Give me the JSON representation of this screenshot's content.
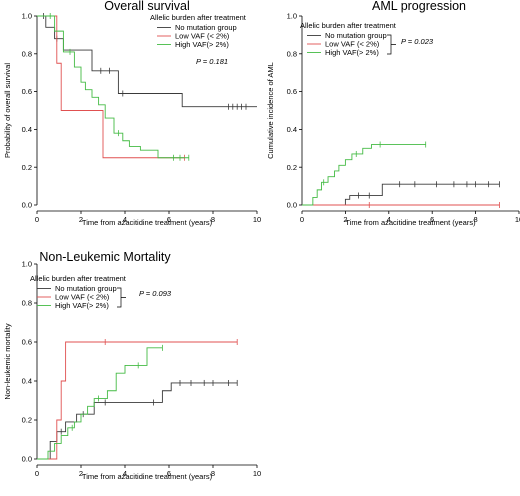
{
  "chart_data": [
    {
      "type": "line",
      "step": true,
      "title": "Overall survival",
      "xlabel": "Time from azacitidine treatment (years)",
      "ylabel": "Probability of overall survival",
      "xlim": [
        0,
        10
      ],
      "ylim": [
        0,
        1.0
      ],
      "xticks": [
        "0",
        "2",
        "4",
        "6",
        "8",
        "10"
      ],
      "yticks": [
        "0.0",
        "0.2",
        "0.4",
        "0.6",
        "0.8",
        "1.0"
      ],
      "legend_title": "Allelic burden after treatment",
      "annotation": "P = 0.181",
      "series": [
        {
          "name": "No mutation group",
          "color": "#3a3a3a",
          "x": [
            0,
            0.4,
            0.8,
            1.2,
            2.5,
            3.7,
            6.6,
            10.0
          ],
          "y": [
            1.0,
            0.94,
            0.88,
            0.82,
            0.71,
            0.59,
            0.52,
            0.52
          ],
          "censor": [
            [
              0.3,
              1.0
            ],
            [
              0.9,
              0.88
            ],
            [
              2.9,
              0.71
            ],
            [
              3.3,
              0.71
            ],
            [
              3.9,
              0.59
            ],
            [
              8.7,
              0.52
            ],
            [
              8.9,
              0.52
            ],
            [
              9.1,
              0.52
            ],
            [
              9.3,
              0.52
            ],
            [
              9.5,
              0.52
            ]
          ]
        },
        {
          "name": "Low VAF (< 2%)",
          "color": "#e05050",
          "x": [
            0,
            0.9,
            1.1,
            3.0,
            6.7
          ],
          "y": [
            1.0,
            0.75,
            0.5,
            0.25,
            0.25
          ],
          "censor": [
            [
              6.7,
              0.25
            ]
          ]
        },
        {
          "name": "High VAF(> 2%)",
          "color": "#44bb44",
          "x": [
            0,
            0.8,
            1.2,
            1.7,
            2.0,
            2.2,
            2.5,
            2.8,
            3.1,
            3.5,
            3.9,
            4.2,
            4.7,
            5.5,
            6.9
          ],
          "y": [
            1.0,
            0.92,
            0.81,
            0.73,
            0.65,
            0.61,
            0.57,
            0.53,
            0.46,
            0.38,
            0.34,
            0.31,
            0.29,
            0.25,
            0.25
          ],
          "censor": [
            [
              0.6,
              1.0
            ],
            [
              1.5,
              0.81
            ],
            [
              3.7,
              0.38
            ],
            [
              6.2,
              0.25
            ],
            [
              6.5,
              0.25
            ],
            [
              6.9,
              0.25
            ]
          ]
        }
      ]
    },
    {
      "type": "line",
      "step": true,
      "title": "AML progression",
      "xlabel": "Time from azacitidine treatment (years)",
      "ylabel": "Cumulative incidence of AML",
      "xlim": [
        0,
        10
      ],
      "ylim": [
        0,
        1.0
      ],
      "xticks": [
        "0",
        "2",
        "4",
        "6",
        "8",
        "10"
      ],
      "yticks": [
        "0.0",
        "0.2",
        "0.4",
        "0.6",
        "0.8",
        "1.0"
      ],
      "legend_title": "Allelic burden after treatment",
      "annotation": "P = 0.023",
      "series": [
        {
          "name": "No mutation group",
          "color": "#3a3a3a",
          "x": [
            0,
            2.0,
            2.2,
            3.7,
            9.1
          ],
          "y": [
            0,
            0.03,
            0.05,
            0.11,
            0.11
          ],
          "censor": [
            [
              2.6,
              0.05
            ],
            [
              3.1,
              0.05
            ],
            [
              4.5,
              0.11
            ],
            [
              5.2,
              0.11
            ],
            [
              6.2,
              0.11
            ],
            [
              7.0,
              0.11
            ],
            [
              7.6,
              0.11
            ],
            [
              8.0,
              0.11
            ],
            [
              8.6,
              0.11
            ],
            [
              9.1,
              0.11
            ]
          ]
        },
        {
          "name": "Low VAF (< 2%)",
          "color": "#e05050",
          "x": [
            0,
            9.1
          ],
          "y": [
            0,
            0
          ],
          "censor": [
            [
              3.1,
              0
            ],
            [
              9.1,
              0
            ]
          ]
        },
        {
          "name": "High VAF(> 2%)",
          "color": "#44bb44",
          "x": [
            0,
            0.5,
            0.7,
            0.9,
            1.2,
            1.5,
            1.7,
            2.0,
            2.3,
            2.8,
            3.2,
            3.5,
            5.7
          ],
          "y": [
            0,
            0.04,
            0.08,
            0.12,
            0.15,
            0.18,
            0.21,
            0.24,
            0.27,
            0.3,
            0.32,
            0.32,
            0.32
          ],
          "censor": [
            [
              1.0,
              0.12
            ],
            [
              2.5,
              0.27
            ],
            [
              3.6,
              0.32
            ],
            [
              5.7,
              0.32
            ]
          ]
        }
      ]
    },
    {
      "type": "line",
      "step": true,
      "title": "Non-Leukemic Mortality",
      "xlabel": "Time from azacitidine treatment (years)",
      "ylabel": "Non-leukemic mortality",
      "xlim": [
        0,
        10
      ],
      "ylim": [
        0,
        1.0
      ],
      "xticks": [
        "0",
        "2",
        "4",
        "6",
        "8",
        "10"
      ],
      "yticks": [
        "0.0",
        "0.2",
        "0.4",
        "0.6",
        "0.8",
        "1.0"
      ],
      "legend_title": "Allelic burden after treatment",
      "annotation": "P = 0.093",
      "series": [
        {
          "name": "No mutation group",
          "color": "#3a3a3a",
          "x": [
            0,
            0.6,
            0.9,
            1.3,
            1.8,
            2.6,
            5.7,
            6.1,
            9.1
          ],
          "y": [
            0,
            0.09,
            0.14,
            0.19,
            0.23,
            0.29,
            0.35,
            0.39,
            0.39
          ],
          "censor": [
            [
              1.1,
              0.14
            ],
            [
              2.1,
              0.23
            ],
            [
              3.1,
              0.29
            ],
            [
              5.3,
              0.29
            ],
            [
              6.5,
              0.39
            ],
            [
              7.0,
              0.39
            ],
            [
              7.6,
              0.39
            ],
            [
              8.0,
              0.39
            ],
            [
              8.7,
              0.39
            ],
            [
              9.1,
              0.39
            ]
          ]
        },
        {
          "name": "Low VAF (< 2%)",
          "color": "#e05050",
          "x": [
            0,
            0.9,
            1.1,
            1.3,
            9.1
          ],
          "y": [
            0,
            0.2,
            0.4,
            0.6,
            0.6
          ],
          "censor": [
            [
              3.1,
              0.6
            ],
            [
              9.1,
              0.6
            ]
          ]
        },
        {
          "name": "High VAF(> 2%)",
          "color": "#44bb44",
          "x": [
            0,
            0.5,
            0.8,
            1.1,
            1.4,
            1.7,
            2.0,
            2.3,
            2.6,
            3.2,
            3.6,
            4.0,
            5.0,
            5.7
          ],
          "y": [
            0,
            0.04,
            0.08,
            0.12,
            0.16,
            0.19,
            0.23,
            0.27,
            0.31,
            0.35,
            0.44,
            0.48,
            0.57,
            0.57
          ],
          "censor": [
            [
              1.6,
              0.16
            ],
            [
              2.8,
              0.31
            ],
            [
              4.6,
              0.48
            ],
            [
              5.7,
              0.57
            ]
          ]
        }
      ]
    }
  ]
}
